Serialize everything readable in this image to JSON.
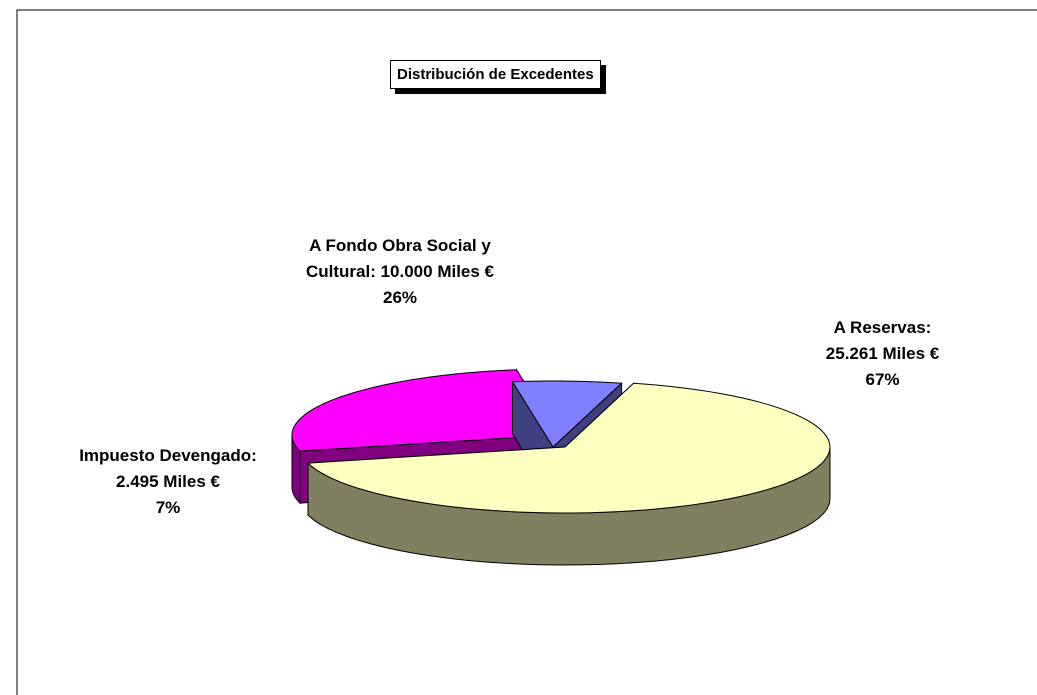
{
  "chart_data": {
    "type": "pie3d",
    "title": "Distribución de Excedentes",
    "categories": [
      "A Reservas:",
      "A Fondo Obra Social y Cultural:",
      "Impuesto Devengado:"
    ],
    "values": [
      25261,
      10000,
      2495
    ],
    "value_labels": [
      "25.261 Miles €",
      "10.000 Miles €",
      "2.495 Miles €"
    ],
    "percent_labels": [
      "67%",
      "26%",
      "7%"
    ],
    "colors": [
      "#ffffc0",
      "#ff00ff",
      "#8080ff"
    ],
    "side_colors": [
      "#808060",
      "#800080",
      "#404080"
    ]
  }
}
